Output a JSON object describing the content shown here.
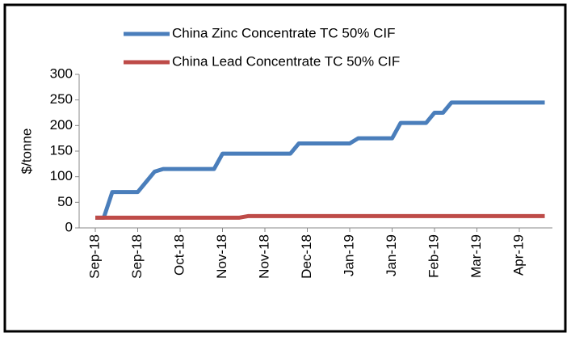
{
  "chart_data": {
    "type": "line",
    "y_label": "$/tonne",
    "categories": [
      "Sep-18",
      null,
      null,
      null,
      null,
      "Sep-18",
      null,
      null,
      null,
      null,
      "Oct-18",
      null,
      null,
      null,
      null,
      "Nov-18",
      null,
      null,
      null,
      null,
      "Nov-18",
      null,
      null,
      null,
      null,
      "Dec-18",
      null,
      null,
      null,
      null,
      "Jan-19",
      null,
      null,
      null,
      null,
      "Jan-19",
      null,
      null,
      null,
      null,
      "Feb-19",
      null,
      null,
      null,
      null,
      "Mar-19",
      null,
      null,
      null,
      null,
      "Apr-19",
      null,
      null,
      null
    ],
    "series": [
      {
        "name": "China Zinc Concentrate TC 50% CIF",
        "color": "#4a7ebb",
        "values": [
          20,
          20,
          70,
          70,
          70,
          70,
          90,
          110,
          115,
          115,
          115,
          115,
          115,
          115,
          115,
          145,
          145,
          145,
          145,
          145,
          145,
          145,
          145,
          145,
          165,
          165,
          165,
          165,
          165,
          165,
          165,
          175,
          175,
          175,
          175,
          175,
          205,
          205,
          205,
          205,
          225,
          225,
          245,
          245,
          245,
          245,
          245,
          245,
          245,
          245,
          245,
          245,
          245,
          245
        ]
      },
      {
        "name": "China Lead Concentrate TC 50% CIF",
        "color": "#be4b48",
        "values": [
          20,
          20,
          20,
          20,
          20,
          20,
          20,
          20,
          20,
          20,
          20,
          20,
          20,
          20,
          20,
          20,
          20,
          20,
          23,
          23,
          23,
          23,
          23,
          23,
          23,
          23,
          23,
          23,
          23,
          23,
          23,
          23,
          23,
          23,
          23,
          23,
          23,
          23,
          23,
          23,
          23,
          23,
          23,
          23,
          23,
          23,
          23,
          23,
          23,
          23,
          23,
          23,
          23,
          23
        ]
      }
    ],
    "ylim": [
      0,
      300
    ],
    "yticks": [
      0,
      50,
      100,
      150,
      200,
      250,
      300
    ],
    "grid": false,
    "legend": "top"
  }
}
